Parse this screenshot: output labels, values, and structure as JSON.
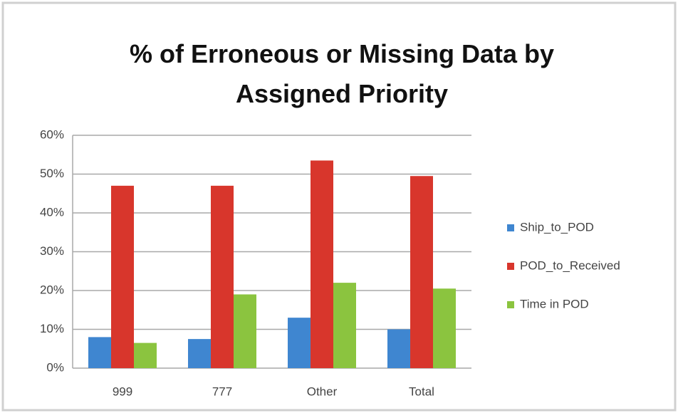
{
  "chart_data": {
    "type": "bar",
    "title": "% of Erroneous or Missing Data by Assigned Priority",
    "categories": [
      "999",
      "777",
      "Other",
      "Total"
    ],
    "series": [
      {
        "name": "Ship_to_POD",
        "color": "#3f86d0",
        "values": [
          8,
          7.5,
          13,
          10
        ]
      },
      {
        "name": "POD_to_Received",
        "color": "#d8362c",
        "values": [
          47,
          47,
          53.5,
          49.5
        ]
      },
      {
        "name": "Time in POD",
        "color": "#8bc43f",
        "values": [
          6.5,
          19,
          22,
          20.5
        ]
      }
    ],
    "ylim": [
      0,
      60
    ],
    "yticks": [
      {
        "value": 0,
        "label": "0%"
      },
      {
        "value": 10,
        "label": "10%"
      },
      {
        "value": 20,
        "label": "20%"
      },
      {
        "value": 30,
        "label": "30%"
      },
      {
        "value": 40,
        "label": "40%"
      },
      {
        "value": 50,
        "label": "50%"
      },
      {
        "value": 60,
        "label": "60%"
      }
    ],
    "grid": true,
    "legend": "right"
  }
}
